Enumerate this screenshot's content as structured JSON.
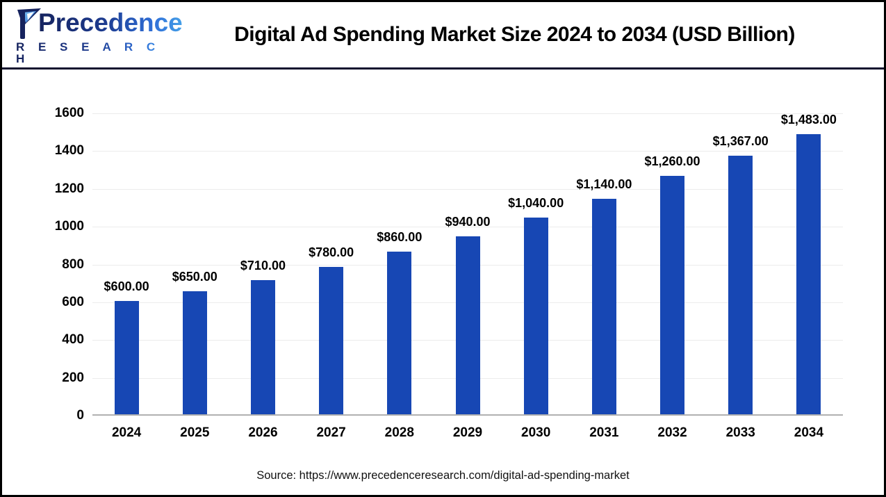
{
  "logo": {
    "brand": "Precedence",
    "sub": "R E S E A R C H"
  },
  "header": {
    "title": "Digital Ad Spending Market Size 2024 to 2034 (USD Billion)"
  },
  "footer": {
    "source": "Source: https://www.precedenceresearch.com/digital-ad-spending-market"
  },
  "colors": {
    "bar": "#1747b4",
    "gridline": "#ececec",
    "axis_baseline": "#b0b0b0",
    "header_rule": "#10102e",
    "logo_dark": "#16235e",
    "logo_light": "#45a0e8",
    "text": "#000000"
  },
  "chart_data": {
    "type": "bar",
    "title": "Digital Ad Spending Market Size 2024 to 2034 (USD Billion)",
    "categories": [
      "2024",
      "2025",
      "2026",
      "2027",
      "2028",
      "2029",
      "2030",
      "2031",
      "2032",
      "2033",
      "2034"
    ],
    "values": [
      600,
      650,
      710,
      780,
      860,
      940,
      1040,
      1140,
      1260,
      1367,
      1483
    ],
    "labels": [
      "$600.00",
      "$650.00",
      "$710.00",
      "$780.00",
      "$860.00",
      "$940.00",
      "$1,040.00",
      "$1,140.00",
      "$1,260.00",
      "$1,367.00",
      "$1,483.00"
    ],
    "xlabel": "",
    "ylabel": "",
    "ylim": [
      0,
      1600
    ],
    "yticks": [
      0,
      200,
      400,
      600,
      800,
      1000,
      1200,
      1400,
      1600
    ],
    "grid": true,
    "legend": "none",
    "bar_color": "#1747b4"
  }
}
